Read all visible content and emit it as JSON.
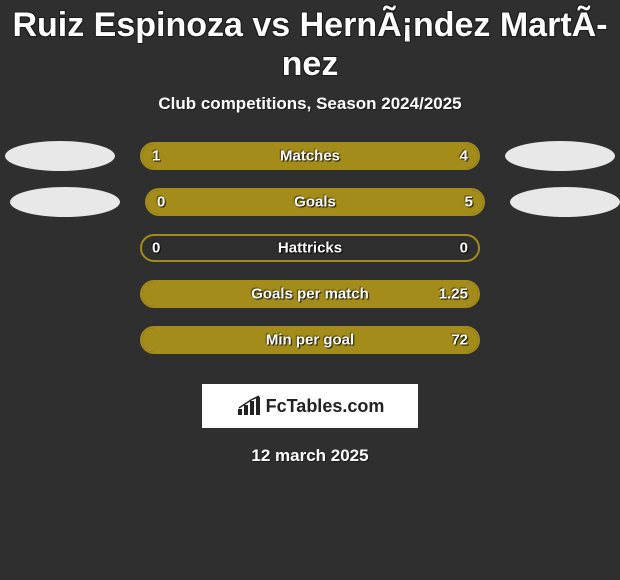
{
  "title": "Ruiz Espinoza vs HernÃ¡ndez MartÃ­nez",
  "subtitle": "Club competitions, Season 2024/2025",
  "colors": {
    "left": "#a38c1a",
    "right": "#a38c1a",
    "background": "#2f2f2f",
    "avatar_bg": "#e8e8e8",
    "text": "#ffffff"
  },
  "stats": [
    {
      "label": "Matches",
      "left_val": "1",
      "right_val": "4",
      "left_pct": 20,
      "right_pct": 80,
      "show_avatars": true,
      "avatar_left_indent": 0,
      "avatar_right_indent": 0
    },
    {
      "label": "Goals",
      "left_val": "0",
      "right_val": "5",
      "left_pct": 0,
      "right_pct": 100,
      "show_avatars": true,
      "avatar_left_indent": 20,
      "avatar_right_indent": 10
    },
    {
      "label": "Hattricks",
      "left_val": "0",
      "right_val": "0",
      "left_pct": 0,
      "right_pct": 0,
      "show_avatars": false
    },
    {
      "label": "Goals per match",
      "left_val": "",
      "right_val": "1.25",
      "left_pct": 0,
      "right_pct": 100,
      "show_avatars": false
    },
    {
      "label": "Min per goal",
      "left_val": "",
      "right_val": "72",
      "left_pct": 0,
      "right_pct": 100,
      "show_avatars": false
    }
  ],
  "brand": "FcTables.com",
  "date": "12 march 2025"
}
